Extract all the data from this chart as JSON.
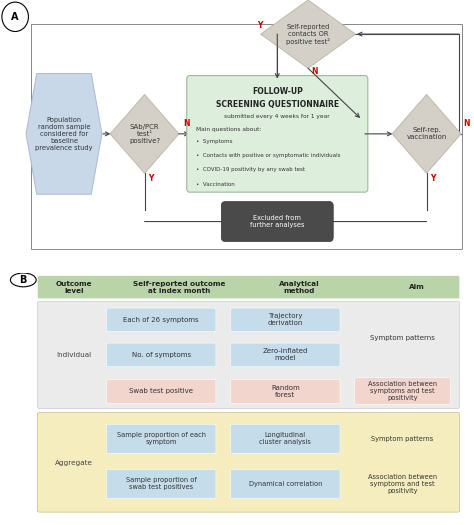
{
  "bg_color": "#ffffff",
  "panel_a": {
    "hex_color": "#c8d8e8",
    "diamond_color": "#d4d0c8",
    "questionnaire_color": "#ddeedd",
    "dark_box_color": "#4a4a4a",
    "arrow_color": "#444444",
    "border_color": "#888888",
    "yn_color": "#cc0000",
    "hex_text": "Population\nrandom sample\nconsidered for\nbaseline\nprevalence study",
    "diamond1_text": "SAb/PCR\ntest¹\npositive?",
    "questionnaire_title1": "FOLLOW-UP",
    "questionnaire_title2": "SCREENING QUESTIONNAIRE",
    "questionnaire_sub": "submitted every 4 weeks for 1 year",
    "questionnaire_main": "Main questions about:",
    "questionnaire_bullets": [
      "Symptoms",
      "Contacts with positive or symptomatic individuals",
      "COVID-19 positivity by any swab test",
      "Vaccination"
    ],
    "diamond2_text": "Self-reported\ncontacts OR\npositive test²",
    "self_rep_text": "Self-rep.\nvaccination",
    "excluded_text": "Excluded from\nfurther analyses"
  },
  "panel_b": {
    "header_color": "#b8d4a8",
    "individual_bg": "#ebebeb",
    "aggregate_bg": "#f5edbe",
    "blue_box_color": "#c5dcea",
    "pink_box_color": "#f2d5cc",
    "headers": [
      "Outcome\nlevel",
      "Self-reported outcome\nat index month",
      "Analytical\nmethod",
      "Aim"
    ],
    "header_bold": [
      true,
      true,
      true,
      true
    ],
    "individual_rows": [
      {
        "outcome": "Each of 26 symptoms",
        "method": "Trajectory\nderivation",
        "aim": "Symptom patterns",
        "color": "blue"
      },
      {
        "outcome": "No. of symptoms",
        "method": "Zero-inflated\nmodel",
        "aim": "Symptom patterns",
        "color": "blue"
      },
      {
        "outcome": "Swab test positive",
        "method": "Random\nforest",
        "aim": "Association between\nsymptoms and test\npositivity",
        "color": "pink"
      }
    ],
    "aggregate_rows": [
      {
        "outcome": "Sample proportion of each\nsymptom",
        "method": "Longitudinal\ncluster analysis",
        "aim": "Symptom patterns",
        "color": "blue"
      },
      {
        "outcome": "Sample proportion of\nswab test positives",
        "method": "Dynamical correlation",
        "aim": "Association between\nsymptoms and test\npositivity",
        "color": "blue"
      }
    ]
  }
}
